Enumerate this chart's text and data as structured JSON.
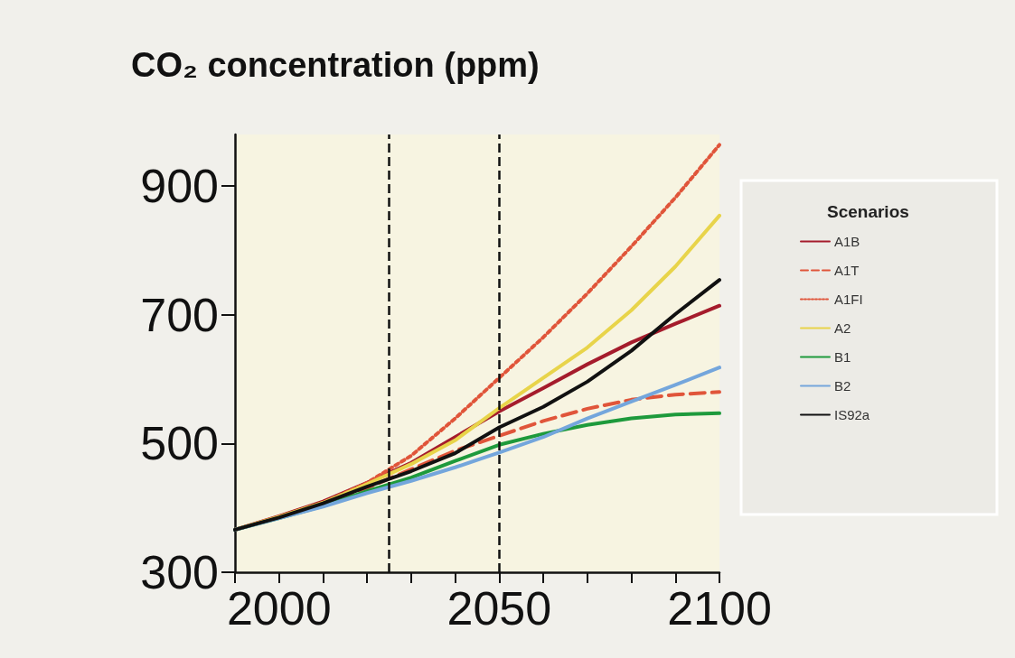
{
  "chart_data": {
    "type": "line",
    "title": "CO₂ concentration (ppm)",
    "legend_title": "Scenarios",
    "legend": "right",
    "x": [
      1990,
      2000,
      2010,
      2020,
      2030,
      2040,
      2050,
      2060,
      2070,
      2080,
      2090,
      2100
    ],
    "series": [
      {
        "name": "A1B",
        "color": "#a51c2c",
        "line_style": "solid",
        "values": [
          366,
          387,
          410,
          439,
          470,
          510,
          550,
          586,
          623,
          657,
          686,
          714
        ]
      },
      {
        "name": "A1T",
        "color": "#e0553a",
        "line_style": "dashed",
        "values": [
          366,
          386,
          408,
          431,
          460,
          489,
          512,
          535,
          554,
          568,
          576,
          580
        ]
      },
      {
        "name": "A1FI",
        "color": "#e0553a",
        "line_style": "dotted",
        "values": [
          366,
          386,
          408,
          439,
          481,
          539,
          602,
          665,
          733,
          806,
          882,
          964
        ]
      },
      {
        "name": "A2",
        "color": "#e8d44a",
        "line_style": "solid",
        "values": [
          366,
          386,
          408,
          437,
          468,
          505,
          555,
          602,
          649,
          707,
          775,
          854
        ]
      },
      {
        "name": "B1",
        "color": "#1e9a3c",
        "line_style": "solid",
        "values": [
          366,
          384,
          403,
          426,
          447,
          473,
          498,
          515,
          529,
          539,
          545,
          547
        ]
      },
      {
        "name": "B2",
        "color": "#74a6dc",
        "line_style": "solid",
        "values": [
          366,
          384,
          402,
          423,
          442,
          463,
          486,
          510,
          539,
          565,
          591,
          618
        ]
      },
      {
        "name": "IS92a",
        "color": "#111111",
        "line_style": "solid",
        "values": [
          366,
          385,
          407,
          433,
          457,
          485,
          525,
          557,
          596,
          644,
          701,
          754
        ]
      }
    ],
    "xlim": [
      1990,
      2100
    ],
    "xticks": [
      {
        "value": 1990,
        "label": null
      },
      2000,
      {
        "value": 2010,
        "label": null
      },
      {
        "value": 2020,
        "label": null
      },
      {
        "value": 2030,
        "label": null
      },
      {
        "value": 2040,
        "label": null
      },
      2050,
      {
        "value": 2060,
        "label": null
      },
      {
        "value": 2070,
        "label": null
      },
      {
        "value": 2080,
        "label": null
      },
      {
        "value": 2090,
        "label": null
      },
      2100
    ],
    "ylim": [
      300,
      980
    ],
    "yticks": [
      300,
      500,
      700,
      900
    ],
    "ref_lines": [
      {
        "axis": "x",
        "value": 2025,
        "color": "#111111",
        "line_style": "dashed"
      },
      {
        "axis": "x",
        "value": 2050,
        "color": "#111111",
        "line_style": "dashed"
      }
    ],
    "grid": false,
    "marker": "none"
  }
}
